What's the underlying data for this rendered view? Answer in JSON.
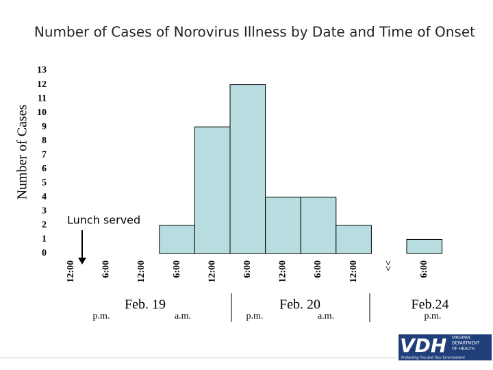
{
  "chart_data": {
    "type": "bar",
    "title": "Number of Cases of Norovirus Illness by Date and Time of Onset",
    "y_label": "Number of Cases",
    "categories": [
      "12:00",
      "6:00",
      "12:00",
      "6:00",
      "12:00",
      "6:00",
      "12:00",
      "6:00",
      "12:00",
      "<<",
      "6:00"
    ],
    "values": [
      0,
      0,
      0,
      2,
      9,
      12,
      4,
      4,
      2,
      0,
      1
    ],
    "color": "#b7dde0",
    "ylim": [
      0,
      13
    ],
    "yticks": [
      0,
      1,
      2,
      3,
      4,
      5,
      6,
      7,
      8,
      9,
      10,
      11,
      12,
      13
    ],
    "grid": false,
    "annotations": [
      "Lunch served"
    ],
    "date_labels": [
      "p.m.",
      "Feb. 19",
      "a.m.",
      "p.m.",
      "Feb. 20",
      "a.m.",
      "Feb.24",
      "p.m."
    ]
  },
  "logo": {
    "mark": "VDH",
    "lines": [
      "VIRGINIA",
      "DEPARTMENT",
      "OF HEALTH"
    ],
    "tagline": "Protecting You and Your Environment"
  }
}
